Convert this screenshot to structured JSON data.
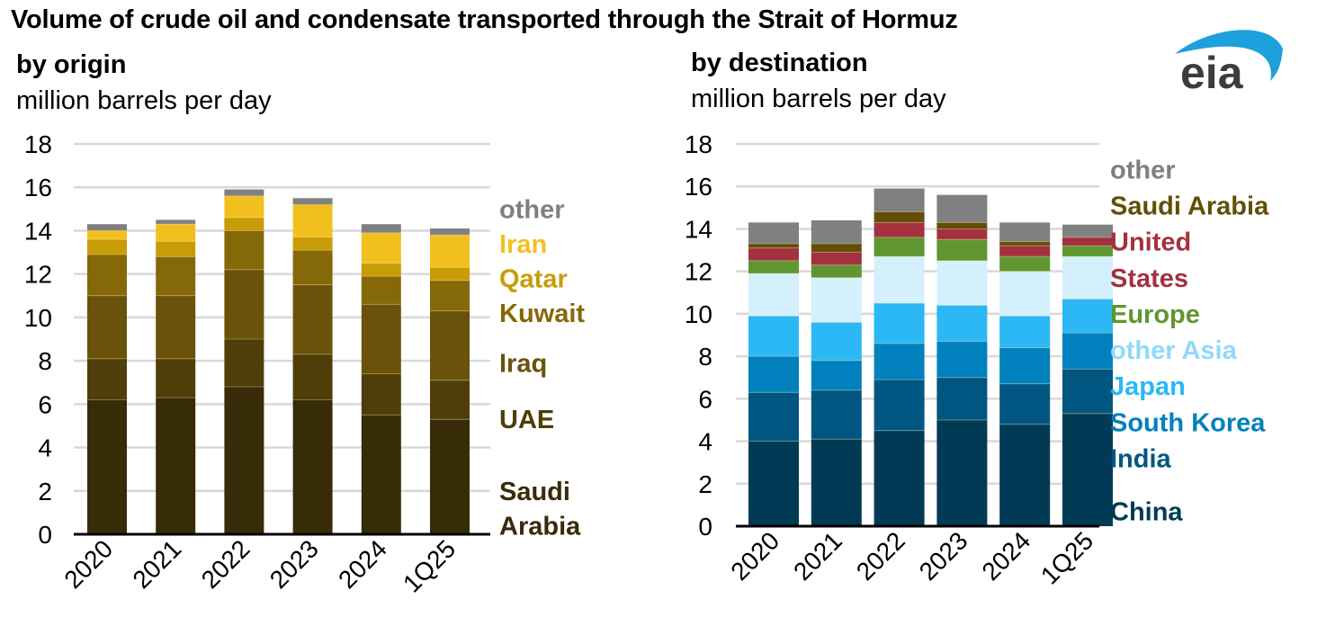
{
  "title": "Volume of crude oil and condensate transported through the Strait of Hormuz",
  "logo": {
    "text": "eia",
    "icon": "eia-logo-arc",
    "arc_color": "#1ea0dc",
    "text_color": "#3c3c3c"
  },
  "chart_data": [
    {
      "type": "bar",
      "stacked": true,
      "id": "origin",
      "title": "by origin",
      "ylabel": "million barrels per day",
      "xlabel": "",
      "ylim": [
        0,
        18
      ],
      "yticks": [
        0,
        2,
        4,
        6,
        8,
        10,
        12,
        14,
        16,
        18
      ],
      "grid": true,
      "legend": "right-inline",
      "categories": [
        "2020",
        "2021",
        "2022",
        "2023",
        "2024",
        "1Q25"
      ],
      "series": [
        {
          "name": "Saudi Arabia",
          "color": "#372b08",
          "values": [
            6.2,
            6.3,
            6.8,
            6.2,
            5.5,
            5.3
          ]
        },
        {
          "name": "UAE",
          "color": "#4f3e09",
          "values": [
            1.9,
            1.8,
            2.2,
            2.1,
            1.9,
            1.8
          ]
        },
        {
          "name": "Iraq",
          "color": "#6a520a",
          "values": [
            2.9,
            2.9,
            3.2,
            3.2,
            3.2,
            3.2
          ]
        },
        {
          "name": "Kuwait",
          "color": "#856808",
          "values": [
            1.9,
            1.8,
            1.8,
            1.6,
            1.3,
            1.4
          ]
        },
        {
          "name": "Qatar",
          "color": "#c89c08",
          "values": [
            0.7,
            0.7,
            0.6,
            0.6,
            0.6,
            0.6
          ]
        },
        {
          "name": "Iran",
          "color": "#f2c01e",
          "values": [
            0.4,
            0.8,
            1.0,
            1.5,
            1.4,
            1.5
          ]
        },
        {
          "name": "other",
          "color": "#808080",
          "values": [
            0.3,
            0.2,
            0.3,
            0.3,
            0.4,
            0.3
          ]
        }
      ],
      "labels": [
        {
          "text": "other",
          "color": "#7f7f7f",
          "at": 15.0
        },
        {
          "text": "Iran",
          "color": "#f2c01e",
          "at": 13.4
        },
        {
          "text": "Qatar",
          "color": "#c89c08",
          "at": 11.8
        },
        {
          "text": "Kuwait",
          "color": "#856808",
          "at": 10.2
        },
        {
          "text": "Iraq",
          "color": "#6a520a",
          "at": 7.9
        },
        {
          "text": "UAE",
          "color": "#4f3e09",
          "at": 5.3
        },
        {
          "text": "Saudi",
          "color": "#372b08",
          "at": 2.0
        },
        {
          "text": "Arabia",
          "color": "#372b08",
          "at": 0.4
        }
      ]
    },
    {
      "type": "bar",
      "stacked": true,
      "id": "destination",
      "title": "by destination",
      "ylabel": "million barrels per day",
      "xlabel": "",
      "ylim": [
        0,
        18
      ],
      "yticks": [
        0,
        2,
        4,
        6,
        8,
        10,
        12,
        14,
        16,
        18
      ],
      "grid": true,
      "legend": "right-inline",
      "categories": [
        "2020",
        "2021",
        "2022",
        "2023",
        "2024",
        "1Q25"
      ],
      "series": [
        {
          "name": "China",
          "color": "#003a54",
          "values": [
            4.0,
            4.1,
            4.5,
            5.0,
            4.8,
            5.3
          ]
        },
        {
          "name": "India",
          "color": "#005680",
          "values": [
            2.3,
            2.3,
            2.4,
            2.0,
            1.9,
            2.1
          ]
        },
        {
          "name": "South Korea",
          "color": "#0081bd",
          "values": [
            1.7,
            1.4,
            1.7,
            1.7,
            1.7,
            1.7
          ]
        },
        {
          "name": "Japan",
          "color": "#2bb8f5",
          "values": [
            1.9,
            1.8,
            1.9,
            1.7,
            1.5,
            1.6
          ]
        },
        {
          "name": "other Asia",
          "color": "#d4f0fc",
          "values": [
            2.0,
            2.1,
            2.2,
            2.1,
            2.1,
            2.0
          ]
        },
        {
          "name": "Europe",
          "color": "#5f9631",
          "values": [
            0.6,
            0.6,
            0.9,
            1.0,
            0.7,
            0.5
          ]
        },
        {
          "name": "United States",
          "color": "#a4313f",
          "values": [
            0.6,
            0.6,
            0.7,
            0.5,
            0.5,
            0.4
          ]
        },
        {
          "name": "Saudi Arabia",
          "color": "#634e07",
          "values": [
            0.2,
            0.4,
            0.5,
            0.3,
            0.2,
            0.0
          ]
        },
        {
          "name": "other",
          "color": "#808080",
          "values": [
            1.0,
            1.1,
            1.1,
            1.3,
            0.9,
            0.6
          ]
        }
      ],
      "labels": [
        {
          "text": "other",
          "color": "#7f7f7f",
          "at": 16.8
        },
        {
          "text": "Saudi Arabia",
          "color": "#634e07",
          "at": 15.1
        },
        {
          "text": "United",
          "color": "#a4313f",
          "at": 13.4
        },
        {
          "text": "States",
          "color": "#a4313f",
          "at": 11.7
        },
        {
          "text": "Europe",
          "color": "#5f9631",
          "at": 10.0
        },
        {
          "text": "other Asia",
          "color": "#93d9f8",
          "at": 8.3
        },
        {
          "text": "Japan",
          "color": "#2bb8f5",
          "at": 6.6
        },
        {
          "text": "South Korea",
          "color": "#0081bd",
          "at": 4.9
        },
        {
          "text": "India",
          "color": "#005680",
          "at": 3.2
        },
        {
          "text": "China",
          "color": "#003a54",
          "at": 0.7
        }
      ]
    }
  ]
}
